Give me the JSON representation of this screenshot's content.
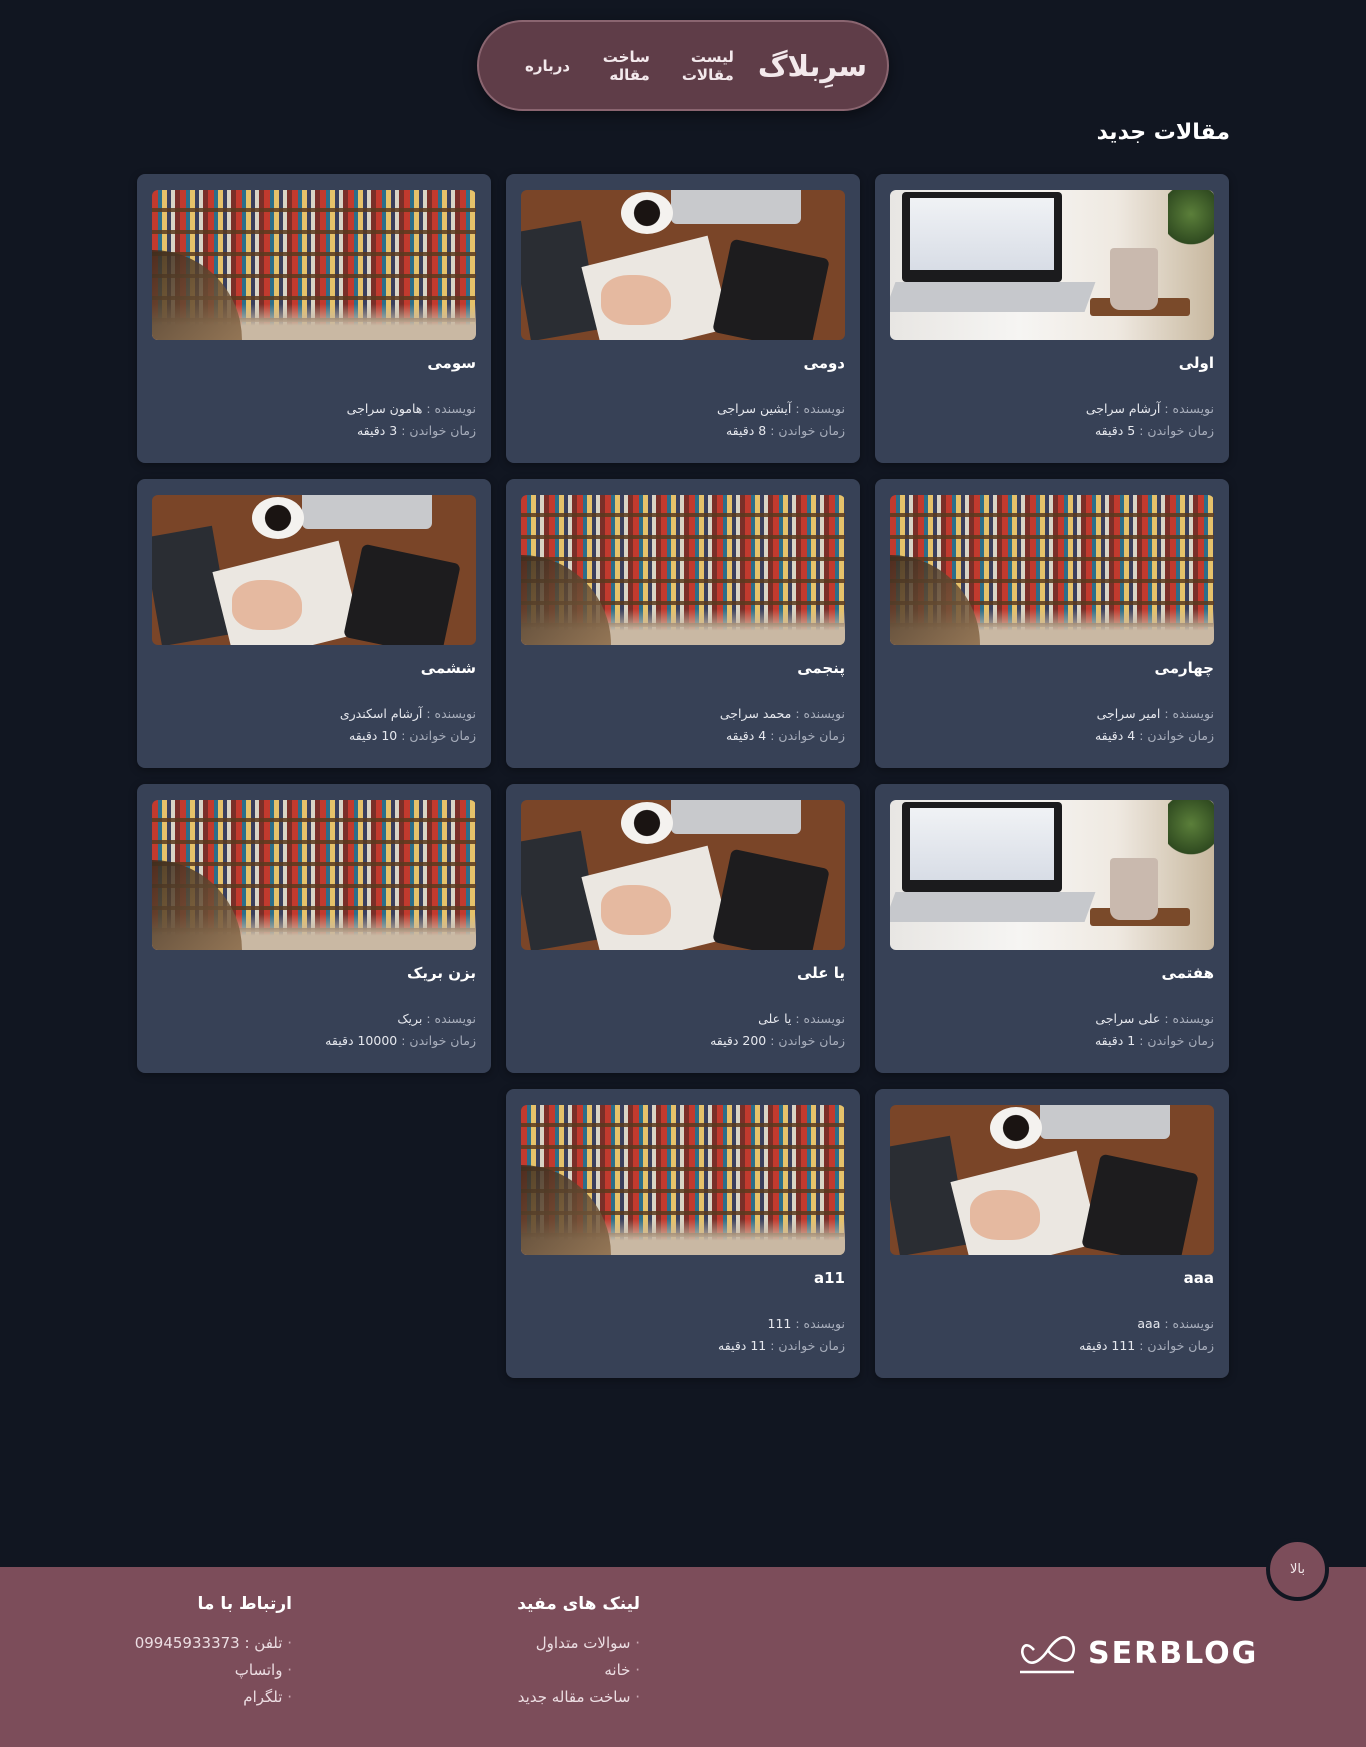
{
  "nav": {
    "brand": "سرِبلاگ",
    "links": [
      "لیست مقالات",
      "ساخت مقاله",
      "درباره"
    ]
  },
  "main": {
    "section_title": "مقالات جدید",
    "author_label": "نویسنده :",
    "time_label": "زمان خواندن :",
    "articles": [
      {
        "title": "اولی",
        "author": "آرشام سراجی",
        "time": "5 دقیقه",
        "image": "laptop"
      },
      {
        "title": "دومی",
        "author": "آیشین سراجی",
        "time": "8 دقیقه",
        "image": "desk"
      },
      {
        "title": "سومی",
        "author": "هامون سراجی",
        "time": "3 دقیقه",
        "image": "library"
      },
      {
        "title": "چهارمی",
        "author": "امیر سراجی",
        "time": "4 دقیقه",
        "image": "library"
      },
      {
        "title": "پنجمی",
        "author": "محمد سراجی",
        "time": "4 دقیقه",
        "image": "library"
      },
      {
        "title": "ششمی",
        "author": "آرشام اسکندری",
        "time": "10 دقیقه",
        "image": "desk"
      },
      {
        "title": "هفتمی",
        "author": "علی سراجی",
        "time": "1 دقیقه",
        "image": "laptop"
      },
      {
        "title": "یا علی",
        "author": "یا علی",
        "time": "200 دقیقه",
        "image": "desk"
      },
      {
        "title": "بزن بریک",
        "author": "بریک",
        "time": "10000 دقیقه",
        "image": "library"
      },
      {
        "title": "aaa",
        "author": "aaa",
        "time": "111 دقیقه",
        "image": "desk"
      },
      {
        "title": "a11",
        "author": "111",
        "time": "11 دقیقه",
        "image": "library"
      }
    ]
  },
  "footer": {
    "top_button": "بالا",
    "logo_text": "SERBLOG",
    "links_title": "لینک های مفید",
    "links": [
      "سوالات متداول",
      "خانه",
      "ساخت مقاله جدید"
    ],
    "contact_title": "ارتباط با ما",
    "contact": [
      "تلفن : 09945933373",
      "واتساپ",
      "تلگرام"
    ]
  },
  "colors": {
    "background": "#111621",
    "card": "#374156",
    "nav": "#5f3d48",
    "footer": "#7c4d5a"
  }
}
